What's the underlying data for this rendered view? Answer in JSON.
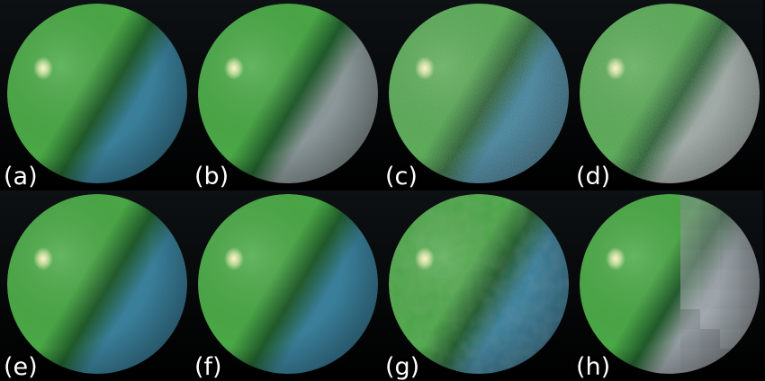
{
  "panels": [
    {
      "label": "(a)",
      "shade": "#3a7f9a",
      "variant": "clean"
    },
    {
      "label": "(b)",
      "shade": "#8a9698",
      "variant": "clean"
    },
    {
      "label": "(c)",
      "shade": "#3a7f9a",
      "variant": "noisy"
    },
    {
      "label": "(d)",
      "shade": "#9aa6a2",
      "variant": "noisy"
    },
    {
      "label": "(e)",
      "shade": "#3a7f9a",
      "variant": "clean"
    },
    {
      "label": "(f)",
      "shade": "#3a7f9a",
      "variant": "clean"
    },
    {
      "label": "(g)",
      "shade": "#3a7f9a",
      "variant": "blotchy"
    },
    {
      "label": "(h)",
      "shade": "#9aa2a8",
      "variant": "blocky"
    }
  ],
  "colors": {
    "sphere_green": "#4aa846",
    "sphere_dark_green": "#1f5a2a",
    "highlight": "#fff6c8",
    "background_top": "#0d1113",
    "background_bottom": "#000000"
  }
}
